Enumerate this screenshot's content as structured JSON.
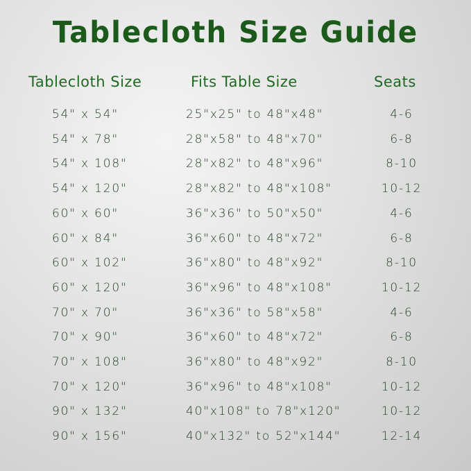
{
  "title": "Tablecloth Size Guide",
  "headers": {
    "size": "Tablecloth Size",
    "fits": "Fits Table Size",
    "seats": "Seats"
  },
  "colors": {
    "title": "#1b5a1b",
    "header": "#1e6a1e",
    "text": "#1f3d1f"
  },
  "rows": [
    {
      "size": "54\" x 54\"",
      "fits": "25\"x25\" to 48\"x48\"",
      "seats": "4-6"
    },
    {
      "size": "54\" x 78\"",
      "fits": "28\"x58\" to 48\"x70\"",
      "seats": "6-8"
    },
    {
      "size": "54\" x 108\"",
      "fits": "28\"x82\" to 48\"x96\"",
      "seats": "8-10"
    },
    {
      "size": "54\" x 120\"",
      "fits": "28\"x82\" to 48\"x108\"",
      "seats": "10-12"
    },
    {
      "size": "60\" x 60\"",
      "fits": "36\"x36\" to 50\"x50\"",
      "seats": "4-6"
    },
    {
      "size": "60\" x 84\"",
      "fits": "36\"x60\" to 48\"x72\"",
      "seats": "6-8"
    },
    {
      "size": "60\" x 102\"",
      "fits": "36\"x80\" to 48\"x92\"",
      "seats": "8-10"
    },
    {
      "size": "60\" x 120\"",
      "fits": "36\"x96\" to 48\"x108\"",
      "seats": "10-12"
    },
    {
      "size": "70\" x 70\"",
      "fits": "36\"x36\" to 58\"x58\"",
      "seats": "4-6"
    },
    {
      "size": "70\" x 90\"",
      "fits": "36\"x60\" to 48\"x72\"",
      "seats": "6-8"
    },
    {
      "size": "70\" x 108\"",
      "fits": "36\"x80\" to 48\"x92\"",
      "seats": "8-10"
    },
    {
      "size": "70\" x 120\"",
      "fits": "36\"x96\" to 48\"x108\"",
      "seats": "10-12"
    },
    {
      "size": "90\" x 132\"",
      "fits": "40\"x108\" to 78\"x120\"",
      "seats": "10-12"
    },
    {
      "size": "90\" x 156\"",
      "fits": "40\"x132\" to 52\"x144\"",
      "seats": "12-14"
    }
  ]
}
